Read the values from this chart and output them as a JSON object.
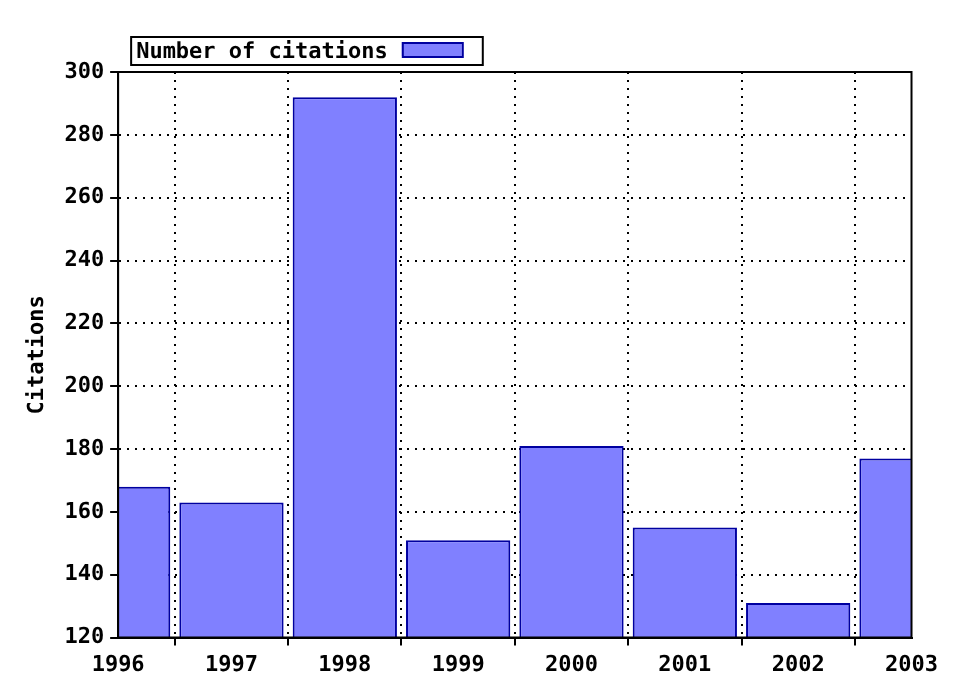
{
  "chart_data": {
    "type": "bar",
    "x": [
      1996,
      1997,
      1998,
      1999,
      2000,
      2001,
      2002,
      2003
    ],
    "series": [
      {
        "name": "Number of citations",
        "color": "#8080ff",
        "values": [
          168,
          163,
          292,
          151,
          181,
          155,
          131,
          177
        ]
      }
    ],
    "ylabel": "Citations",
    "xlim": [
      1996,
      2003
    ],
    "xticks": [
      1996,
      1997,
      1998,
      1999,
      2000,
      2001,
      2002,
      2003
    ],
    "ylim": [
      120,
      300
    ],
    "yticks": [
      120,
      140,
      160,
      180,
      200,
      220,
      240,
      260,
      280,
      300
    ],
    "grid": true,
    "legend": "top left"
  }
}
